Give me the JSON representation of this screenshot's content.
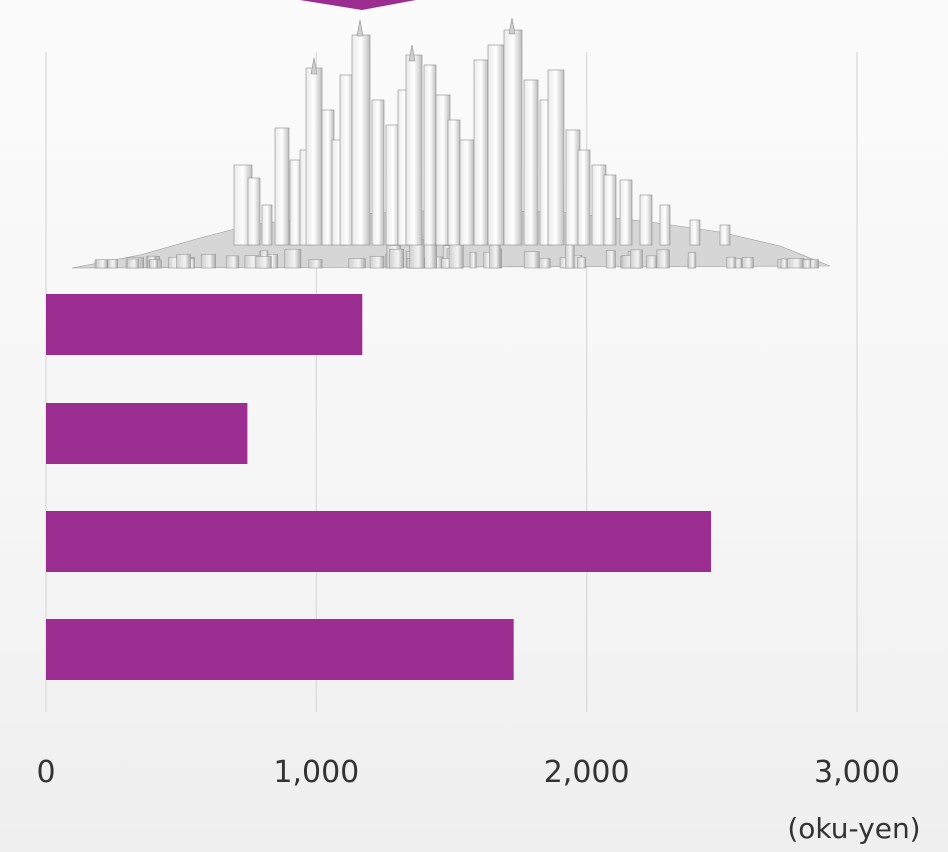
{
  "chart_data": {
    "type": "bar",
    "orientation": "horizontal",
    "categories": [
      "",
      "",
      "",
      ""
    ],
    "values": [
      1170,
      745,
      2460,
      1730
    ],
    "xlim": [
      0,
      3000
    ],
    "x_ticks": [
      "0",
      "1,000",
      "2,000",
      "3,000"
    ],
    "x_tick_values": [
      0,
      1000,
      2000,
      3000
    ],
    "unit_label": "(oku-yen)",
    "grid": "vertical",
    "legend": "none",
    "title": "",
    "xlabel": "",
    "ylabel": ""
  },
  "colors": {
    "bar": "#9b2d91",
    "grid": "#d9d9d9",
    "background": "#f7f7f7",
    "text": "#333333"
  },
  "decorations": {
    "skyline_icon": "city-skyline-icon",
    "top_marker_icon": "callout-pointer-icon"
  }
}
